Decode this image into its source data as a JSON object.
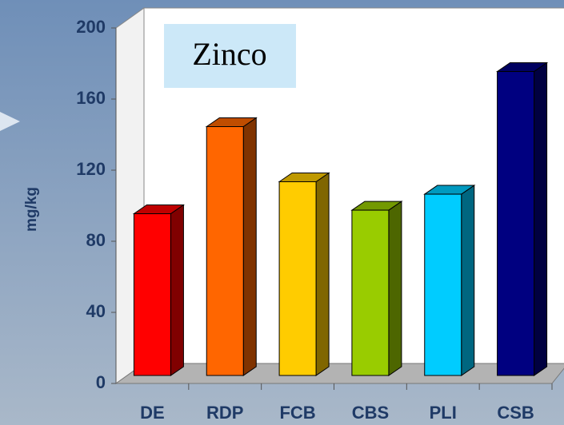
{
  "chart_data": {
    "type": "bar3d",
    "title": "Zinco",
    "y_label": "mg/kg",
    "categories": [
      "DE",
      "RDP",
      "FCB",
      "CBS",
      "PLI",
      "CSB"
    ],
    "values": [
      91,
      140,
      109,
      93,
      102,
      171
    ],
    "colors": [
      "#ff0000",
      "#ff6600",
      "#ffcc00",
      "#99cc00",
      "#00ccff",
      "#000080"
    ],
    "ylim": [
      0,
      200
    ],
    "yticks": [
      0,
      40,
      80,
      120,
      160,
      200
    ]
  }
}
